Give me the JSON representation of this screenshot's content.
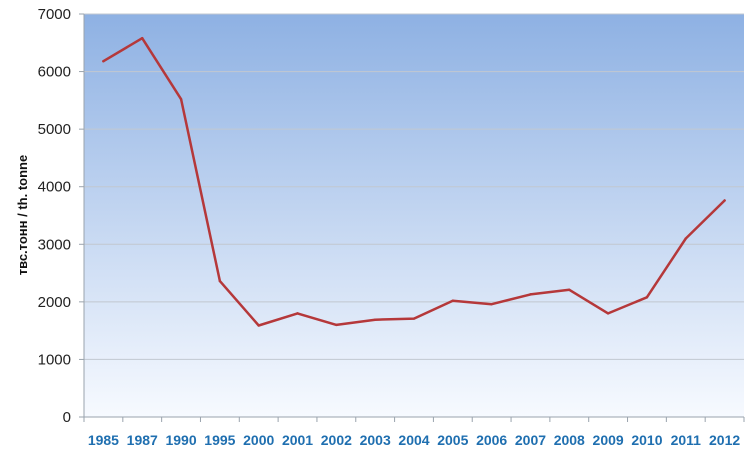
{
  "chart_data": {
    "type": "line",
    "title": "",
    "xlabel": "",
    "ylabel": "твс.тонн / th. tonne",
    "categories": [
      "1985",
      "1987",
      "1990",
      "1995",
      "2000",
      "2001",
      "2002",
      "2003",
      "2004",
      "2005",
      "2006",
      "2007",
      "2008",
      "2009",
      "2010",
      "2011",
      "2012"
    ],
    "series": [
      {
        "values": [
          6180,
          6580,
          5520,
          2360,
          1590,
          1800,
          1600,
          1690,
          1710,
          2020,
          1960,
          2130,
          2210,
          1800,
          2080,
          3100,
          3760
        ],
        "color": "#b5383a"
      }
    ],
    "ylim": [
      0,
      7000
    ],
    "yticks": [
      0,
      1000,
      2000,
      3000,
      4000,
      5000,
      6000,
      7000
    ],
    "grid": true,
    "legend": "none",
    "plot_background": {
      "top": "#8eb1e3",
      "bottom": "#f7faff"
    },
    "gridline_color": "#c2c8d0",
    "tick_label_color": "#1f6fb0"
  }
}
